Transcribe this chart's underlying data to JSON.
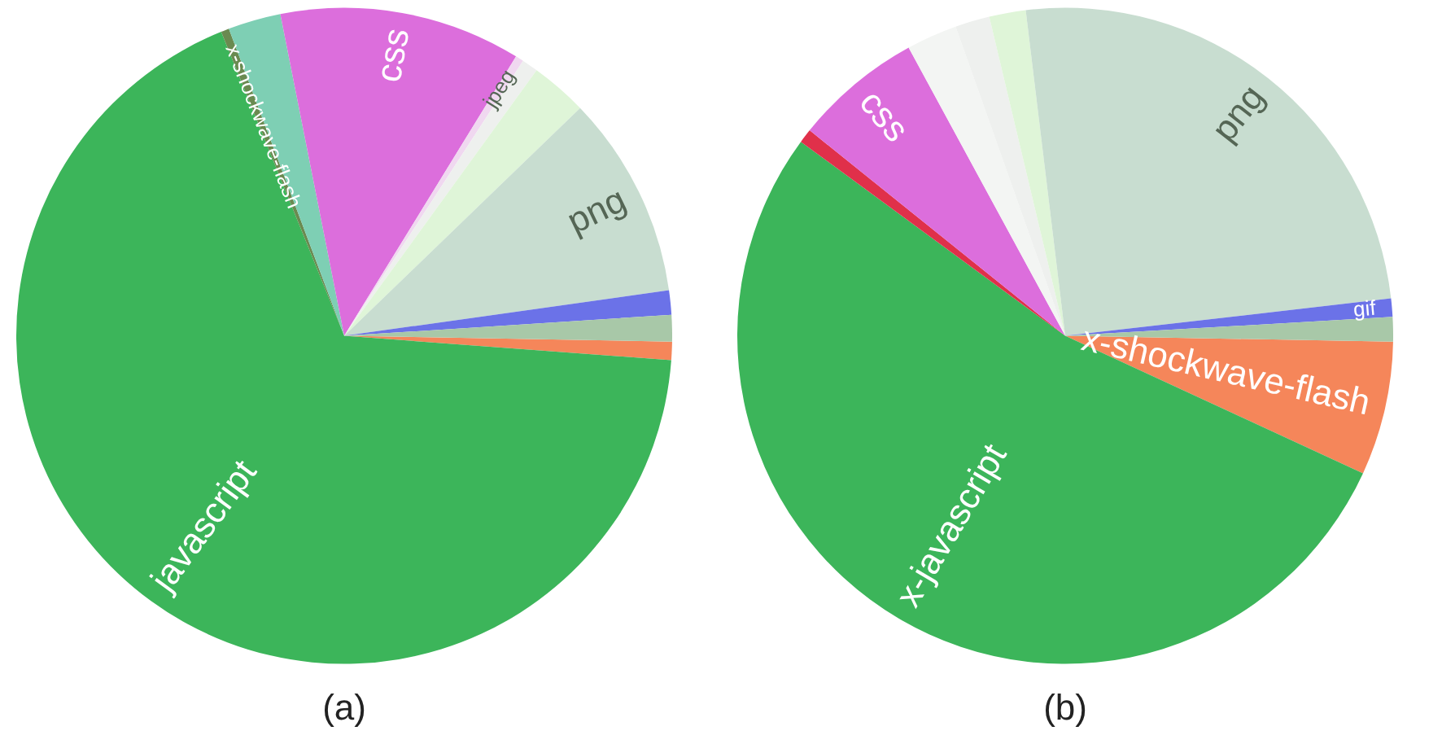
{
  "chart_data": [
    {
      "type": "pie",
      "title": "(a)",
      "categories": [
        null,
        "javascript",
        "x-shockwave-flash",
        null,
        "css",
        "jpeg",
        null,
        null,
        "png",
        null,
        null
      ],
      "values": [
        0.9,
        67.7,
        0.4,
        2.6,
        11.9,
        0.4,
        0.8,
        2.8,
        10,
        1.2,
        1.3
      ],
      "colors": [
        "#f5865a",
        "#3cb55a",
        "#6a8a50",
        "#7ecfb4",
        "#dc6edc",
        "#f0d8f0",
        "#eef0ee",
        "#dff5d8",
        "#c8ddd0",
        "#6b72e8",
        "#a8c8a8"
      ]
    },
    {
      "type": "pie",
      "title": "(b)",
      "categories": [
        "x-shockwave-flash",
        "x-javascript",
        null,
        "css",
        null,
        null,
        null,
        "png",
        "gif",
        null
      ],
      "values": [
        6.6,
        53.2,
        0.7,
        6.3,
        2.5,
        1.7,
        1.8,
        25.1,
        0.9,
        1.2
      ],
      "colors": [
        "#f5865a",
        "#3cb55a",
        "#e0304a",
        "#dc6edc",
        "#f3f5f3",
        "#eef0ee",
        "#dff5d8",
        "#c8ddd0",
        "#6b72e8",
        "#a8c8a8"
      ]
    }
  ]
}
